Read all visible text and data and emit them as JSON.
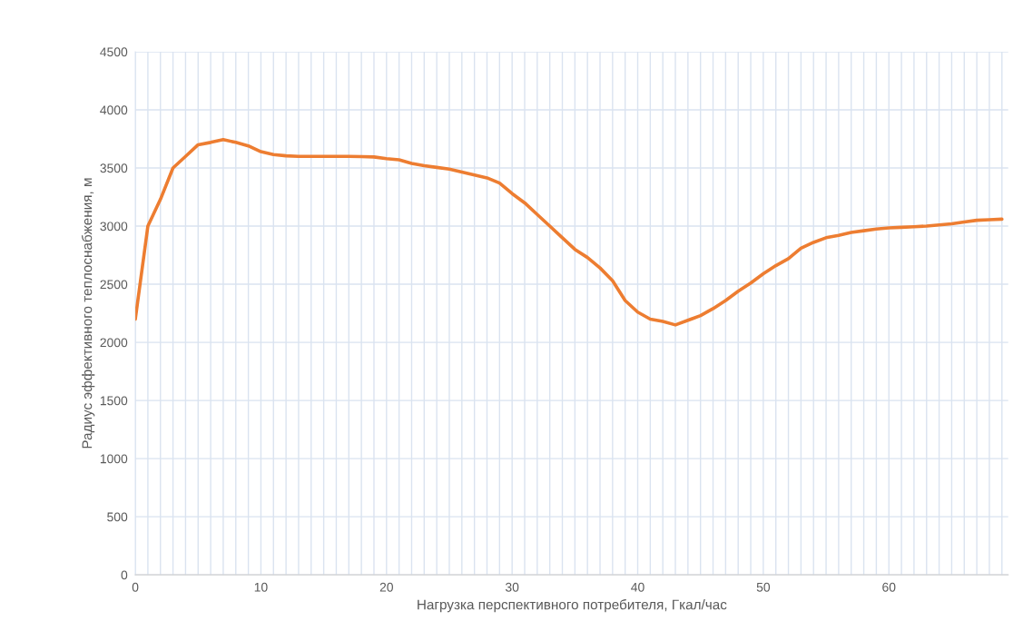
{
  "chart_data": {
    "type": "line",
    "xlabel": "Нагрузка перспективного потребителя, Гкал/час",
    "ylabel": "Радиус эффективного теплоснабжения, м",
    "x": [
      0,
      1,
      2,
      3,
      4,
      5,
      6,
      7,
      8,
      9,
      10,
      11,
      12,
      13,
      14,
      15,
      16,
      17,
      18,
      19,
      20,
      21,
      22,
      23,
      24,
      25,
      26,
      27,
      28,
      29,
      30,
      31,
      32,
      33,
      34,
      35,
      36,
      37,
      38,
      39,
      40,
      41,
      42,
      43,
      44,
      45,
      46,
      47,
      48,
      49,
      50,
      51,
      52,
      53,
      54,
      55,
      56,
      57,
      58,
      59,
      60,
      61,
      62,
      63,
      64,
      65,
      66,
      67,
      68,
      69
    ],
    "series": [
      {
        "color": "#ed7d31",
        "values": [
          2200,
          3000,
          3230,
          3500,
          3600,
          3700,
          3720,
          3745,
          3720,
          3690,
          3640,
          3615,
          3605,
          3600,
          3600,
          3600,
          3600,
          3600,
          3598,
          3595,
          3580,
          3570,
          3540,
          3520,
          3505,
          3490,
          3465,
          3440,
          3415,
          3370,
          3280,
          3200,
          3100,
          3000,
          2900,
          2800,
          2730,
          2640,
          2530,
          2360,
          2260,
          2200,
          2180,
          2150,
          2190,
          2230,
          2290,
          2360,
          2440,
          2510,
          2590,
          2660,
          2720,
          2810,
          2860,
          2900,
          2920,
          2945,
          2960,
          2975,
          2985,
          2990,
          2995,
          3000,
          3010,
          3020,
          3035,
          3050,
          3055,
          3060
        ]
      }
    ],
    "xlim": [
      0,
      69.5
    ],
    "xticks": [
      0,
      {
        "value": 1,
        "label": null
      },
      {
        "value": 2,
        "label": null
      },
      {
        "value": 3,
        "label": null
      },
      {
        "value": 4,
        "label": null
      },
      {
        "value": 5,
        "label": null
      },
      {
        "value": 6,
        "label": null
      },
      {
        "value": 7,
        "label": null
      },
      {
        "value": 8,
        "label": null
      },
      {
        "value": 9,
        "label": null
      },
      10,
      {
        "value": 11,
        "label": null
      },
      {
        "value": 12,
        "label": null
      },
      {
        "value": 13,
        "label": null
      },
      {
        "value": 14,
        "label": null
      },
      {
        "value": 15,
        "label": null
      },
      {
        "value": 16,
        "label": null
      },
      {
        "value": 17,
        "label": null
      },
      {
        "value": 18,
        "label": null
      },
      {
        "value": 19,
        "label": null
      },
      20,
      {
        "value": 21,
        "label": null
      },
      {
        "value": 22,
        "label": null
      },
      {
        "value": 23,
        "label": null
      },
      {
        "value": 24,
        "label": null
      },
      {
        "value": 25,
        "label": null
      },
      {
        "value": 26,
        "label": null
      },
      {
        "value": 27,
        "label": null
      },
      {
        "value": 28,
        "label": null
      },
      {
        "value": 29,
        "label": null
      },
      30,
      {
        "value": 31,
        "label": null
      },
      {
        "value": 32,
        "label": null
      },
      {
        "value": 33,
        "label": null
      },
      {
        "value": 34,
        "label": null
      },
      {
        "value": 35,
        "label": null
      },
      {
        "value": 36,
        "label": null
      },
      {
        "value": 37,
        "label": null
      },
      {
        "value": 38,
        "label": null
      },
      {
        "value": 39,
        "label": null
      },
      40,
      {
        "value": 41,
        "label": null
      },
      {
        "value": 42,
        "label": null
      },
      {
        "value": 43,
        "label": null
      },
      {
        "value": 44,
        "label": null
      },
      {
        "value": 45,
        "label": null
      },
      {
        "value": 46,
        "label": null
      },
      {
        "value": 47,
        "label": null
      },
      {
        "value": 48,
        "label": null
      },
      {
        "value": 49,
        "label": null
      },
      50,
      {
        "value": 51,
        "label": null
      },
      {
        "value": 52,
        "label": null
      },
      {
        "value": 53,
        "label": null
      },
      {
        "value": 54,
        "label": null
      },
      {
        "value": 55,
        "label": null
      },
      {
        "value": 56,
        "label": null
      },
      {
        "value": 57,
        "label": null
      },
      {
        "value": 58,
        "label": null
      },
      {
        "value": 59,
        "label": null
      },
      60,
      {
        "value": 61,
        "label": null
      },
      {
        "value": 62,
        "label": null
      },
      {
        "value": 63,
        "label": null
      },
      {
        "value": 64,
        "label": null
      },
      {
        "value": 65,
        "label": null
      },
      {
        "value": 66,
        "label": null
      },
      {
        "value": 67,
        "label": null
      },
      {
        "value": 68,
        "label": null
      },
      {
        "value": 69,
        "label": null
      }
    ],
    "ylim": [
      0,
      4500
    ],
    "yticks": [
      0,
      500,
      1000,
      1500,
      2000,
      2500,
      3000,
      3500,
      4000,
      4500
    ],
    "grid": true,
    "legend": false,
    "marker": "none",
    "line_style": "solid"
  }
}
